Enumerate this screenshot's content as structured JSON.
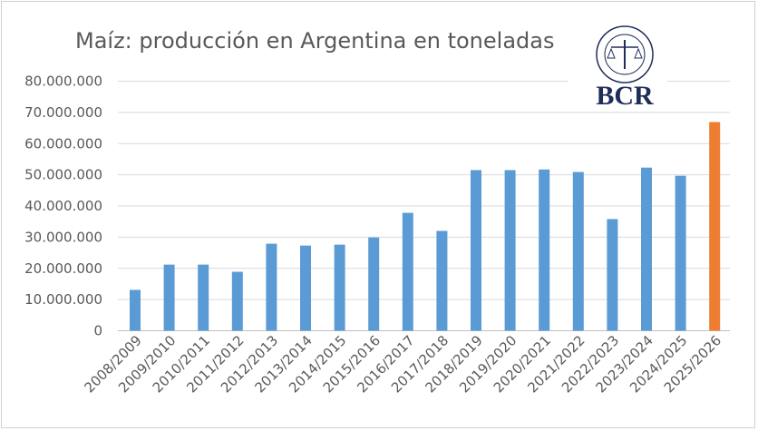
{
  "chart_data": {
    "type": "bar",
    "title": "Maíz: producción en Argentina en toneladas",
    "xlabel": "",
    "ylabel": "",
    "ylim": [
      0,
      80000000
    ],
    "yticks": [
      0,
      10000000,
      20000000,
      30000000,
      40000000,
      50000000,
      60000000,
      70000000,
      80000000
    ],
    "ytick_labels": [
      "0",
      "10.000.000",
      "20.000.000",
      "30.000.000",
      "40.000.000",
      "50.000.000",
      "60.000.000",
      "70.000.000",
      "80.000.000"
    ],
    "grid": true,
    "legend": "none",
    "categories": [
      "2008/2009",
      "2009/2010",
      "2010/2011",
      "2011/2012",
      "2012/2013",
      "2013/2014",
      "2014/2015",
      "2015/2016",
      "2016/2017",
      "2017/2018",
      "2018/2019",
      "2019/2020",
      "2020/2021",
      "2021/2022",
      "2022/2023",
      "2023/2024",
      "2024/2025",
      "2025/2026"
    ],
    "values": [
      13100000,
      21200000,
      21200000,
      18900000,
      27900000,
      27300000,
      27600000,
      29900000,
      37800000,
      32000000,
      51500000,
      51500000,
      51700000,
      50900000,
      35800000,
      52300000,
      49700000,
      66900000
    ],
    "colors": {
      "default": "#5b9bd5",
      "highlight": "#ed7d31"
    },
    "highlight_category": "2025/2026"
  },
  "logo": {
    "text": "BCR",
    "seal_text": "BOLSA DE COMERCIO DE ROSARIO",
    "color": "#1f2d5a"
  }
}
